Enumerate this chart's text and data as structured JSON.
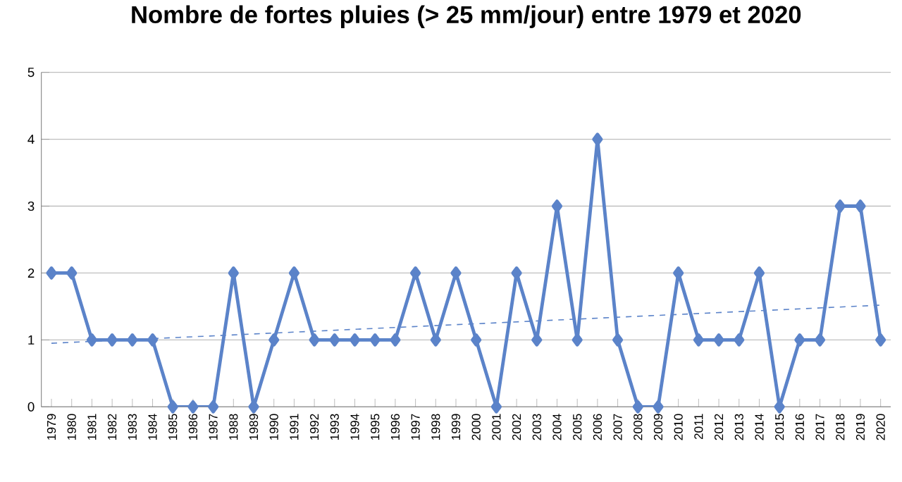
{
  "chart_data": {
    "type": "line",
    "title": "Nombre de fortes pluies (> 25 mm/jour) entre 1979 et 2020",
    "x": [
      1979,
      1980,
      1981,
      1982,
      1983,
      1984,
      1985,
      1986,
      1987,
      1988,
      1989,
      1990,
      1991,
      1992,
      1993,
      1994,
      1995,
      1996,
      1997,
      1998,
      1999,
      2000,
      2001,
      2002,
      2003,
      2004,
      2005,
      2006,
      2007,
      2008,
      2009,
      2010,
      2011,
      2012,
      2013,
      2014,
      2015,
      2016,
      2017,
      2018,
      2019,
      2020
    ],
    "series": [
      {
        "color": "#5b83c9",
        "marker": "diamond",
        "line_style": "solid",
        "values": [
          2,
          2,
          1,
          1,
          1,
          1,
          0,
          0,
          0,
          2,
          0,
          1,
          2,
          1,
          1,
          1,
          1,
          1,
          2,
          1,
          2,
          1,
          0,
          2,
          1,
          3,
          1,
          4,
          1,
          0,
          0,
          2,
          1,
          1,
          1,
          2,
          0,
          1,
          1,
          3,
          3,
          1
        ]
      },
      {
        "type": "line",
        "color": "#5b83c9",
        "marker": "none",
        "line_style": "dashed",
        "x": [
          1979,
          2020
        ],
        "values": [
          0.95,
          1.52
        ]
      }
    ],
    "xlim": [
      1978.5,
      2020.5
    ],
    "xticks": [
      1979,
      1980,
      1981,
      1982,
      1983,
      1984,
      1985,
      1986,
      1987,
      1988,
      1989,
      1990,
      1991,
      1992,
      1993,
      1994,
      1995,
      1996,
      1997,
      1998,
      1999,
      2000,
      2001,
      2002,
      2003,
      2004,
      2005,
      2006,
      2007,
      2008,
      2009,
      2010,
      2011,
      2012,
      2013,
      2014,
      2015,
      2016,
      2017,
      2018,
      2019,
      2020
    ],
    "ylim": [
      0,
      5
    ],
    "yticks": [
      0,
      1,
      2,
      3,
      4,
      5
    ],
    "grid": "y"
  }
}
